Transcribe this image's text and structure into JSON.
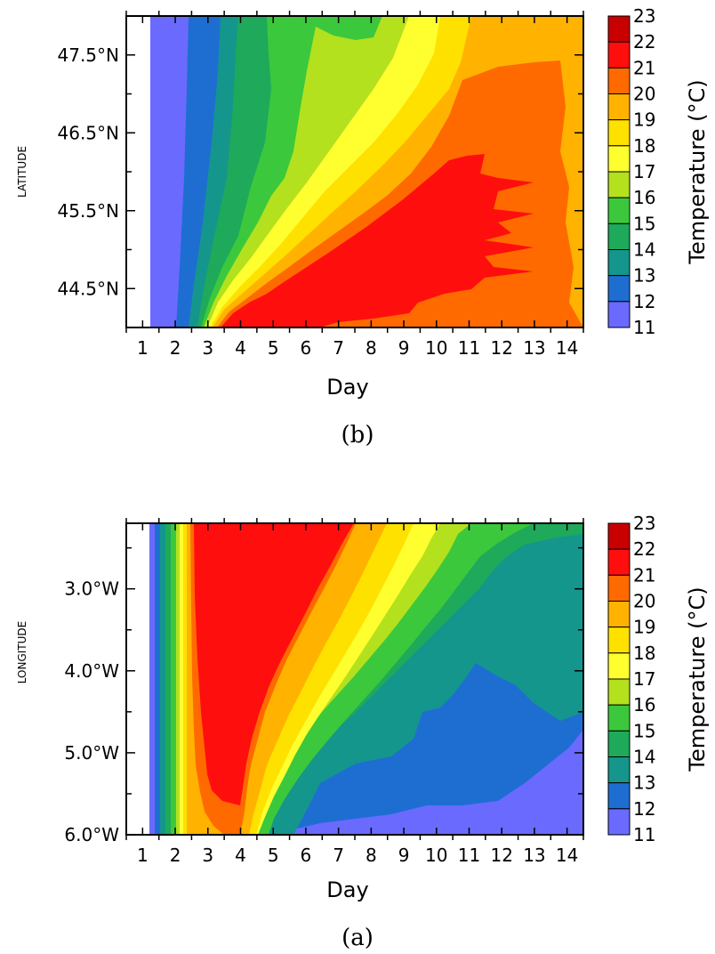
{
  "chart_data": [
    {
      "type": "heatmap",
      "panel_label": "(b)",
      "xlabel": "Day",
      "ylabel": "LATITUDE",
      "x_ticks": [
        "1",
        "2",
        "3",
        "4",
        "5",
        "6",
        "7",
        "8",
        "9",
        "10",
        "11",
        "12",
        "13",
        "14"
      ],
      "y_ticks": [
        "47.5°N",
        "46.5°N",
        "45.5°N",
        "44.5°N"
      ],
      "y_tick_values": [
        47.5,
        46.5,
        45.5,
        44.5
      ],
      "xlim": [
        0.5,
        14.5
      ],
      "ylim": [
        44.0,
        48.0
      ],
      "colorbar_title": "Temperature (°C)",
      "colorbar_levels": [
        "23",
        "22",
        "21",
        "20",
        "19",
        "18",
        "17",
        "16",
        "15",
        "14",
        "13",
        "12",
        "11"
      ],
      "colorbar_colors": [
        "#c80000",
        "#ff0e0e",
        "#ff6a00",
        "#ffb300",
        "#ffe100",
        "#ffff30",
        "#b4e11e",
        "#3cc83c",
        "#1eaa5a",
        "#14968c",
        "#1e6ed2",
        "#6a6aff",
        "#ff40ff"
      ],
      "isotherm_crossing_days": {
        "note_y_values": [
          44.0,
          45.0,
          46.0,
          47.0,
          48.0
        ],
        "13": [
          2.3,
          2.5,
          2.6,
          2.6,
          2.6
        ],
        "14": [
          2.6,
          2.7,
          3.0,
          3.1,
          3.1
        ],
        "15": [
          3.0,
          3.1,
          3.4,
          3.6,
          3.7
        ],
        "16": [
          3.1,
          3.5,
          4.0,
          4.5,
          5.5
        ],
        "17": [
          3.2,
          3.8,
          4.6,
          5.6,
          7.3
        ],
        "18": [
          3.4,
          4.2,
          5.3,
          6.8,
          9.0
        ],
        "19": [
          3.5,
          4.5,
          6.1,
          8.0,
          10.2
        ],
        "20": [
          3.7,
          5.0,
          7.3,
          10.5,
          13.0
        ],
        "21": [
          3.9,
          5.8,
          9.5,
          11.3,
          14.5
        ]
      }
    },
    {
      "type": "heatmap",
      "panel_label": "(a)",
      "xlabel": "Day",
      "ylabel": "LONGITUDE",
      "x_ticks": [
        "1",
        "2",
        "3",
        "4",
        "5",
        "6",
        "7",
        "8",
        "9",
        "10",
        "11",
        "12",
        "13",
        "14"
      ],
      "y_ticks": [
        "3.0°W",
        "4.0°W",
        "5.0°W",
        "6.0°W"
      ],
      "y_tick_values": [
        3.0,
        4.0,
        5.0,
        6.0
      ],
      "xlim": [
        0.5,
        14.5
      ],
      "ylim": [
        6.0,
        2.2
      ],
      "colorbar_title": "Temperature (°C)",
      "colorbar_levels": [
        "23",
        "22",
        "21",
        "20",
        "19",
        "18",
        "17",
        "16",
        "15",
        "14",
        "13",
        "12",
        "11"
      ],
      "colorbar_colors": [
        "#c80000",
        "#ff0e0e",
        "#ff6a00",
        "#ffb300",
        "#ffe100",
        "#ffff30",
        "#b4e11e",
        "#3cc83c",
        "#1eaa5a",
        "#14968c",
        "#1e6ed2",
        "#6a6aff",
        "#ff40ff"
      ]
    }
  ]
}
